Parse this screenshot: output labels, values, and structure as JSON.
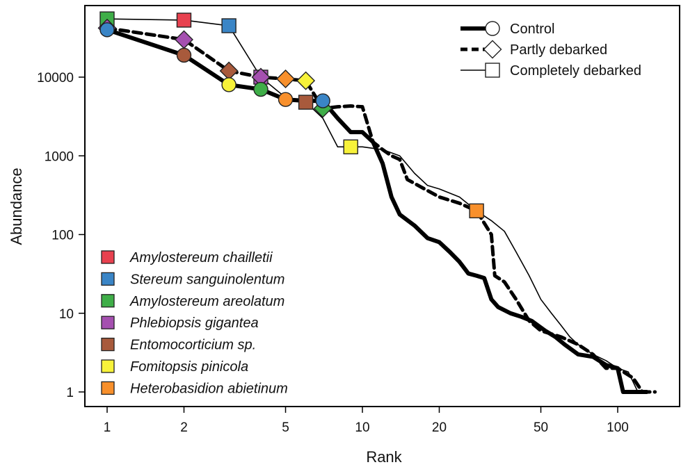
{
  "chart_data": {
    "type": "line",
    "title": "",
    "xlabel": "Rank",
    "ylabel": "Abundance",
    "x_scale": "log",
    "y_scale": "log",
    "xlim": [
      0.9,
      150
    ],
    "ylim": [
      0.85,
      70000
    ],
    "x_ticks": [
      1,
      2,
      5,
      10,
      20,
      50,
      100
    ],
    "x_tick_labels": [
      "1",
      "2",
      "5",
      "10",
      "20",
      "50",
      "100"
    ],
    "y_ticks": [
      1,
      10,
      100,
      1000,
      10000
    ],
    "y_tick_labels": [
      "1",
      "10",
      "100",
      "1000",
      "10000"
    ],
    "grid": false,
    "legend_position": "top-right",
    "species_legend_position": "bottom-left",
    "series": [
      {
        "name": "Control",
        "marker": "circle",
        "line_style": "thick solid",
        "points": [
          [
            1,
            40000
          ],
          [
            2,
            19000
          ],
          [
            3,
            8000
          ],
          [
            4,
            7000
          ],
          [
            5,
            5200
          ],
          [
            6,
            5000
          ],
          [
            7,
            5000
          ],
          [
            8,
            3000
          ],
          [
            9,
            2000
          ],
          [
            10,
            2000
          ],
          [
            11,
            1500
          ],
          [
            12,
            800
          ],
          [
            13,
            300
          ],
          [
            14,
            180
          ],
          [
            16,
            130
          ],
          [
            18,
            90
          ],
          [
            20,
            80
          ],
          [
            22,
            60
          ],
          [
            24,
            45
          ],
          [
            26,
            32
          ],
          [
            28,
            30
          ],
          [
            30,
            28
          ],
          [
            32,
            15
          ],
          [
            34,
            12
          ],
          [
            38,
            10
          ],
          [
            42,
            9
          ],
          [
            46,
            8
          ],
          [
            52,
            6
          ],
          [
            57,
            5
          ],
          [
            62,
            4
          ],
          [
            70,
            3
          ],
          [
            80,
            2.8
          ],
          [
            90,
            2.2
          ],
          [
            100,
            2
          ],
          [
            105,
            1
          ],
          [
            115,
            1
          ],
          [
            130,
            1
          ]
        ],
        "highlighted": [
          {
            "rank": 1,
            "abundance": 40000,
            "species": "Stereum sanguinolentum"
          },
          {
            "rank": 2,
            "abundance": 19000,
            "species": "Entomocorticium sp."
          },
          {
            "rank": 3,
            "abundance": 8000,
            "species": "Fomitopsis pinicola"
          },
          {
            "rank": 4,
            "abundance": 7000,
            "species": "Amylostereum areolatum"
          },
          {
            "rank": 5,
            "abundance": 5200,
            "species": "Heterobasidion abietinum"
          },
          {
            "rank": 7,
            "abundance": 5000,
            "species": "Stereum sanguinolentum"
          }
        ]
      },
      {
        "name": "Partly debarked",
        "marker": "diamond",
        "line_style": "thick dashed",
        "points": [
          [
            1,
            42000
          ],
          [
            2,
            30000
          ],
          [
            3,
            12000
          ],
          [
            4,
            10000
          ],
          [
            5,
            9500
          ],
          [
            6,
            9000
          ],
          [
            7,
            4000
          ],
          [
            8,
            4200
          ],
          [
            9,
            4300
          ],
          [
            10,
            4200
          ],
          [
            11,
            1500
          ],
          [
            12,
            1200
          ],
          [
            13,
            1000
          ],
          [
            14,
            900
          ],
          [
            15,
            500
          ],
          [
            17,
            400
          ],
          [
            20,
            300
          ],
          [
            24,
            250
          ],
          [
            28,
            200
          ],
          [
            30,
            140
          ],
          [
            32,
            100
          ],
          [
            33,
            30
          ],
          [
            36,
            25
          ],
          [
            40,
            15
          ],
          [
            45,
            8
          ],
          [
            50,
            6
          ],
          [
            60,
            5
          ],
          [
            70,
            4
          ],
          [
            80,
            3
          ],
          [
            90,
            2
          ],
          [
            100,
            2
          ],
          [
            115,
            1.5
          ],
          [
            125,
            1
          ],
          [
            140,
            1
          ]
        ],
        "highlighted": [
          {
            "rank": 1,
            "abundance": 42000,
            "species": "Phlebiopsis gigantea"
          },
          {
            "rank": 2,
            "abundance": 30000,
            "species": "Phlebiopsis gigantea"
          },
          {
            "rank": 3,
            "abundance": 12000,
            "species": "Entomocorticium sp."
          },
          {
            "rank": 4,
            "abundance": 10000,
            "species": "Phlebiopsis gigantea"
          },
          {
            "rank": 5,
            "abundance": 9500,
            "species": "Heterobasidion abietinum"
          },
          {
            "rank": 6,
            "abundance": 9000,
            "species": "Fomitopsis pinicola"
          },
          {
            "rank": 7,
            "abundance": 4000,
            "species": "Amylostereum areolatum"
          }
        ]
      },
      {
        "name": "Completely debarked",
        "marker": "square",
        "line_style": "thin solid",
        "points": [
          [
            1,
            55000
          ],
          [
            2,
            53000
          ],
          [
            3,
            45000
          ],
          [
            4,
            10000
          ],
          [
            5,
            5500
          ],
          [
            6,
            4800
          ],
          [
            7,
            3000
          ],
          [
            8,
            1300
          ],
          [
            9,
            1300
          ],
          [
            10,
            1300
          ],
          [
            12,
            1200
          ],
          [
            14,
            1000
          ],
          [
            16,
            600
          ],
          [
            18,
            420
          ],
          [
            20,
            380
          ],
          [
            24,
            300
          ],
          [
            28,
            200
          ],
          [
            32,
            150
          ],
          [
            36,
            110
          ],
          [
            40,
            60
          ],
          [
            45,
            30
          ],
          [
            50,
            15
          ],
          [
            55,
            10
          ],
          [
            60,
            7
          ],
          [
            65,
            5
          ],
          [
            70,
            4
          ],
          [
            80,
            3
          ],
          [
            90,
            2.5
          ],
          [
            100,
            2
          ],
          [
            110,
            1.8
          ],
          [
            120,
            1
          ],
          [
            125,
            1
          ]
        ],
        "highlighted": [
          {
            "rank": 1,
            "abundance": 55000,
            "species": "Amylostereum areolatum"
          },
          {
            "rank": 2,
            "abundance": 53000,
            "species": "Amylostereum chailletii"
          },
          {
            "rank": 3,
            "abundance": 45000,
            "species": "Stereum sanguinolentum"
          },
          {
            "rank": 4,
            "abundance": 10000,
            "species": "Phlebiopsis gigantea"
          },
          {
            "rank": 6,
            "abundance": 4800,
            "species": "Entomocorticium sp."
          },
          {
            "rank": 9,
            "abundance": 1300,
            "species": "Fomitopsis pinicola"
          },
          {
            "rank": 28,
            "abundance": 200,
            "species": "Heterobasidion abietinum"
          }
        ]
      }
    ],
    "species": [
      {
        "name": "Amylostereum chailletii",
        "color": "#e8414f"
      },
      {
        "name": "Stereum sanguinolentum",
        "color": "#3a85c6"
      },
      {
        "name": "Amylostereum areolatum",
        "color": "#3fae48"
      },
      {
        "name": "Phlebiopsis gigantea",
        "color": "#a550b0"
      },
      {
        "name": "Entomocorticium sp.",
        "color": "#a85a3c"
      },
      {
        "name": "Fomitopsis pinicola",
        "color": "#f7f23a"
      },
      {
        "name": "Heterobasidion abietinum",
        "color": "#f8902c"
      }
    ]
  }
}
